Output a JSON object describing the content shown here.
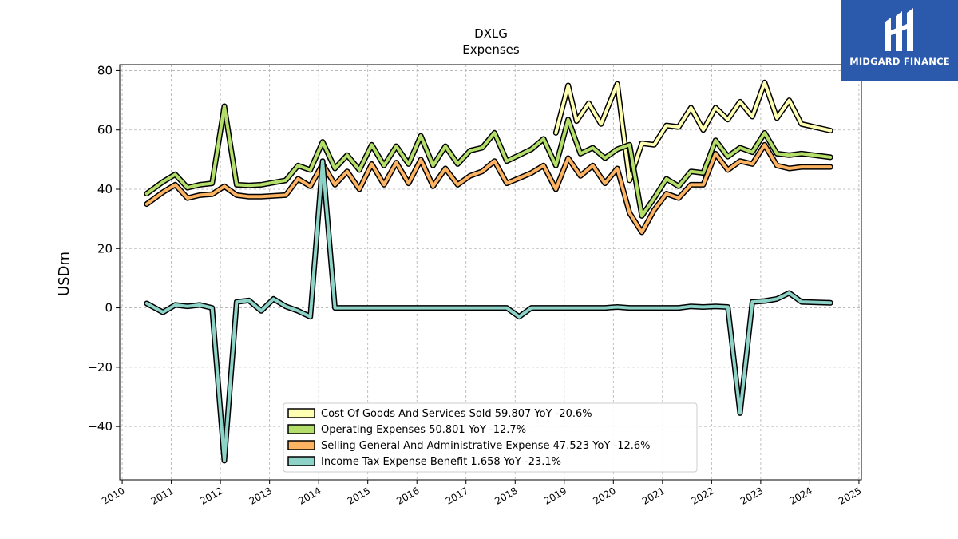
{
  "brand": {
    "name": "MIDGARD FINANCE",
    "bg_color": "#2b5aad"
  },
  "chart_data": {
    "type": "line",
    "title": "DXLG",
    "subtitle": "Expenses",
    "ylabel": "USDm",
    "xlabel": "",
    "xlim": [
      2009.95,
      2025.05
    ],
    "ylim": [
      -58,
      82
    ],
    "xticks": [
      2010,
      2011,
      2012,
      2013,
      2014,
      2015,
      2016,
      2017,
      2018,
      2019,
      2020,
      2021,
      2022,
      2023,
      2024,
      2025
    ],
    "yticks": [
      -40,
      -20,
      0,
      20,
      40,
      60,
      80
    ],
    "grid": true,
    "legend_position": "bottom-center",
    "series": [
      {
        "name": "Cost Of Goods And Services Sold",
        "legend_label": "Cost Of Goods And Services Sold  59.807 YoY -20.6%",
        "color": "#ffffb3",
        "x": [
          2018.83,
          2019.08,
          2019.25,
          2019.5,
          2019.75,
          2020.08,
          2020.33,
          2020.58,
          2020.83,
          2021.08,
          2021.33,
          2021.58,
          2021.83,
          2022.08,
          2022.33,
          2022.58,
          2022.83,
          2023.08,
          2023.33,
          2023.58,
          2023.83,
          2024.42
        ],
        "y": [
          59,
          75,
          63,
          69,
          62,
          75.5,
          43,
          55.5,
          55,
          61.5,
          61,
          67.5,
          60,
          67.5,
          63.5,
          69.5,
          64.5,
          76,
          64,
          70,
          62,
          59.8
        ]
      },
      {
        "name": "Operating Expenses",
        "legend_label": "Operating Expenses  50.801 YoY -12.7%",
        "color": "#b3de69",
        "x": [
          2010.5,
          2010.83,
          2011.08,
          2011.33,
          2011.58,
          2011.83,
          2012.08,
          2012.33,
          2012.58,
          2012.83,
          2013.33,
          2013.58,
          2013.83,
          2014.08,
          2014.33,
          2014.58,
          2014.83,
          2015.08,
          2015.33,
          2015.58,
          2015.83,
          2016.08,
          2016.33,
          2016.58,
          2016.83,
          2017.08,
          2017.33,
          2017.58,
          2017.83,
          2018.33,
          2018.58,
          2018.83,
          2019.08,
          2019.33,
          2019.58,
          2019.83,
          2020.08,
          2020.33,
          2020.58,
          2020.83,
          2021.08,
          2021.33,
          2021.58,
          2021.83,
          2022.08,
          2022.33,
          2022.58,
          2022.83,
          2023.08,
          2023.33,
          2023.58,
          2023.83,
          2024.42
        ],
        "y": [
          38.5,
          42.5,
          45,
          40.5,
          41.5,
          42,
          68,
          41.5,
          41.3,
          41.5,
          43,
          48,
          46.5,
          56,
          47,
          51.5,
          46.5,
          55,
          48,
          54.5,
          48.5,
          58,
          48,
          54.5,
          48.5,
          53,
          54,
          59,
          49.5,
          53.5,
          57,
          48,
          63.5,
          52,
          54,
          50.5,
          53.5,
          55,
          31,
          37,
          43.5,
          41,
          46,
          45.5,
          56.5,
          51,
          54,
          52.5,
          59,
          52,
          51.5,
          52,
          50.8
        ]
      },
      {
        "name": "Selling General And Administrative Expense",
        "legend_label": "Selling General And Administrative Expense  47.523 YoY -12.6%",
        "color": "#fdb462",
        "x": [
          2010.5,
          2010.83,
          2011.08,
          2011.33,
          2011.58,
          2011.83,
          2012.08,
          2012.33,
          2012.58,
          2012.83,
          2013.33,
          2013.58,
          2013.83,
          2014.08,
          2014.33,
          2014.58,
          2014.83,
          2015.08,
          2015.33,
          2015.58,
          2015.83,
          2016.08,
          2016.33,
          2016.58,
          2016.83,
          2017.08,
          2017.33,
          2017.58,
          2017.83,
          2018.33,
          2018.58,
          2018.83,
          2019.08,
          2019.33,
          2019.58,
          2019.83,
          2020.08,
          2020.33,
          2020.58,
          2020.83,
          2021.08,
          2021.33,
          2021.58,
          2021.83,
          2022.08,
          2022.33,
          2022.58,
          2022.83,
          2023.08,
          2023.33,
          2023.58,
          2023.83,
          2024.42
        ],
        "y": [
          35,
          39,
          41.5,
          37,
          38,
          38.3,
          41,
          38,
          37.5,
          37.5,
          38,
          43.5,
          41,
          48.5,
          41.5,
          46,
          40,
          48.5,
          41.5,
          49,
          42,
          50,
          41,
          47,
          41.5,
          44.5,
          46,
          49.5,
          42,
          45.5,
          48,
          40,
          50.5,
          44.5,
          48,
          42,
          47,
          32,
          25.5,
          33,
          38.5,
          37,
          41.5,
          41.5,
          52,
          46.5,
          49.5,
          48.5,
          55,
          48,
          47,
          47.5,
          47.5
        ]
      },
      {
        "name": "Income Tax Expense Benefit",
        "legend_label": "Income Tax Expense Benefit  1.658 YoY -23.1%",
        "color": "#8dd3c7",
        "x": [
          2010.5,
          2010.83,
          2011.08,
          2011.33,
          2011.58,
          2011.83,
          2012.08,
          2012.33,
          2012.58,
          2012.83,
          2013.08,
          2013.33,
          2013.58,
          2013.83,
          2014.08,
          2014.33,
          2014.58,
          2015.0,
          2016.0,
          2017.0,
          2017.83,
          2018.08,
          2018.33,
          2019.0,
          2019.83,
          2020.08,
          2020.33,
          2021.0,
          2021.33,
          2021.58,
          2021.83,
          2022.08,
          2022.33,
          2022.58,
          2022.83,
          2023.08,
          2023.33,
          2023.58,
          2023.83,
          2024.42
        ],
        "y": [
          1.5,
          -1.5,
          1,
          0.5,
          1,
          0,
          -51.5,
          2,
          2.5,
          -1,
          3,
          0.5,
          -1,
          -3,
          49.5,
          0,
          0,
          0,
          0,
          0,
          0,
          -3,
          0,
          0,
          0,
          0.3,
          0,
          0,
          0,
          0.5,
          0.3,
          0.5,
          0.3,
          -35.5,
          2,
          2.3,
          3,
          5,
          2,
          1.7
        ]
      }
    ]
  }
}
